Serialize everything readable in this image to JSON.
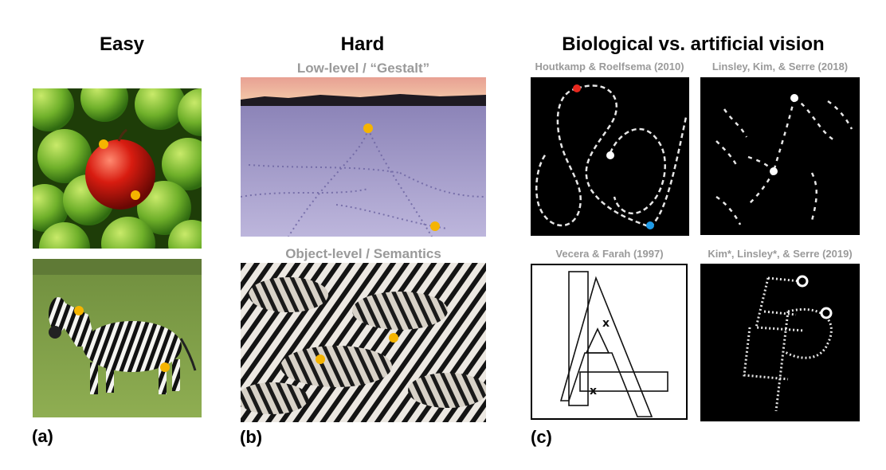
{
  "columns": {
    "easy": {
      "title": "Easy",
      "label": "(a)"
    },
    "hard": {
      "title": "Hard",
      "label": "(b)",
      "low_level_subtitle": "Low-level / “Gestalt”",
      "object_level_subtitle": "Object-level / Semantics"
    },
    "bio": {
      "title": "Biological vs. artificial vision",
      "label": "(c)",
      "citations": [
        "Houtkamp & Roelfsema (2010)",
        "Linsley, Kim, & Serre (2018)",
        "Vecera & Farah (1997)",
        "Kim*, Linsley*, & Serre (2019)"
      ],
      "x_markers": [
        "x",
        "x"
      ]
    }
  },
  "colors": {
    "marker_orange": "#f5b400",
    "marker_red": "#e8281e",
    "marker_blue": "#1f9be8",
    "marker_white": "#ffffff"
  }
}
